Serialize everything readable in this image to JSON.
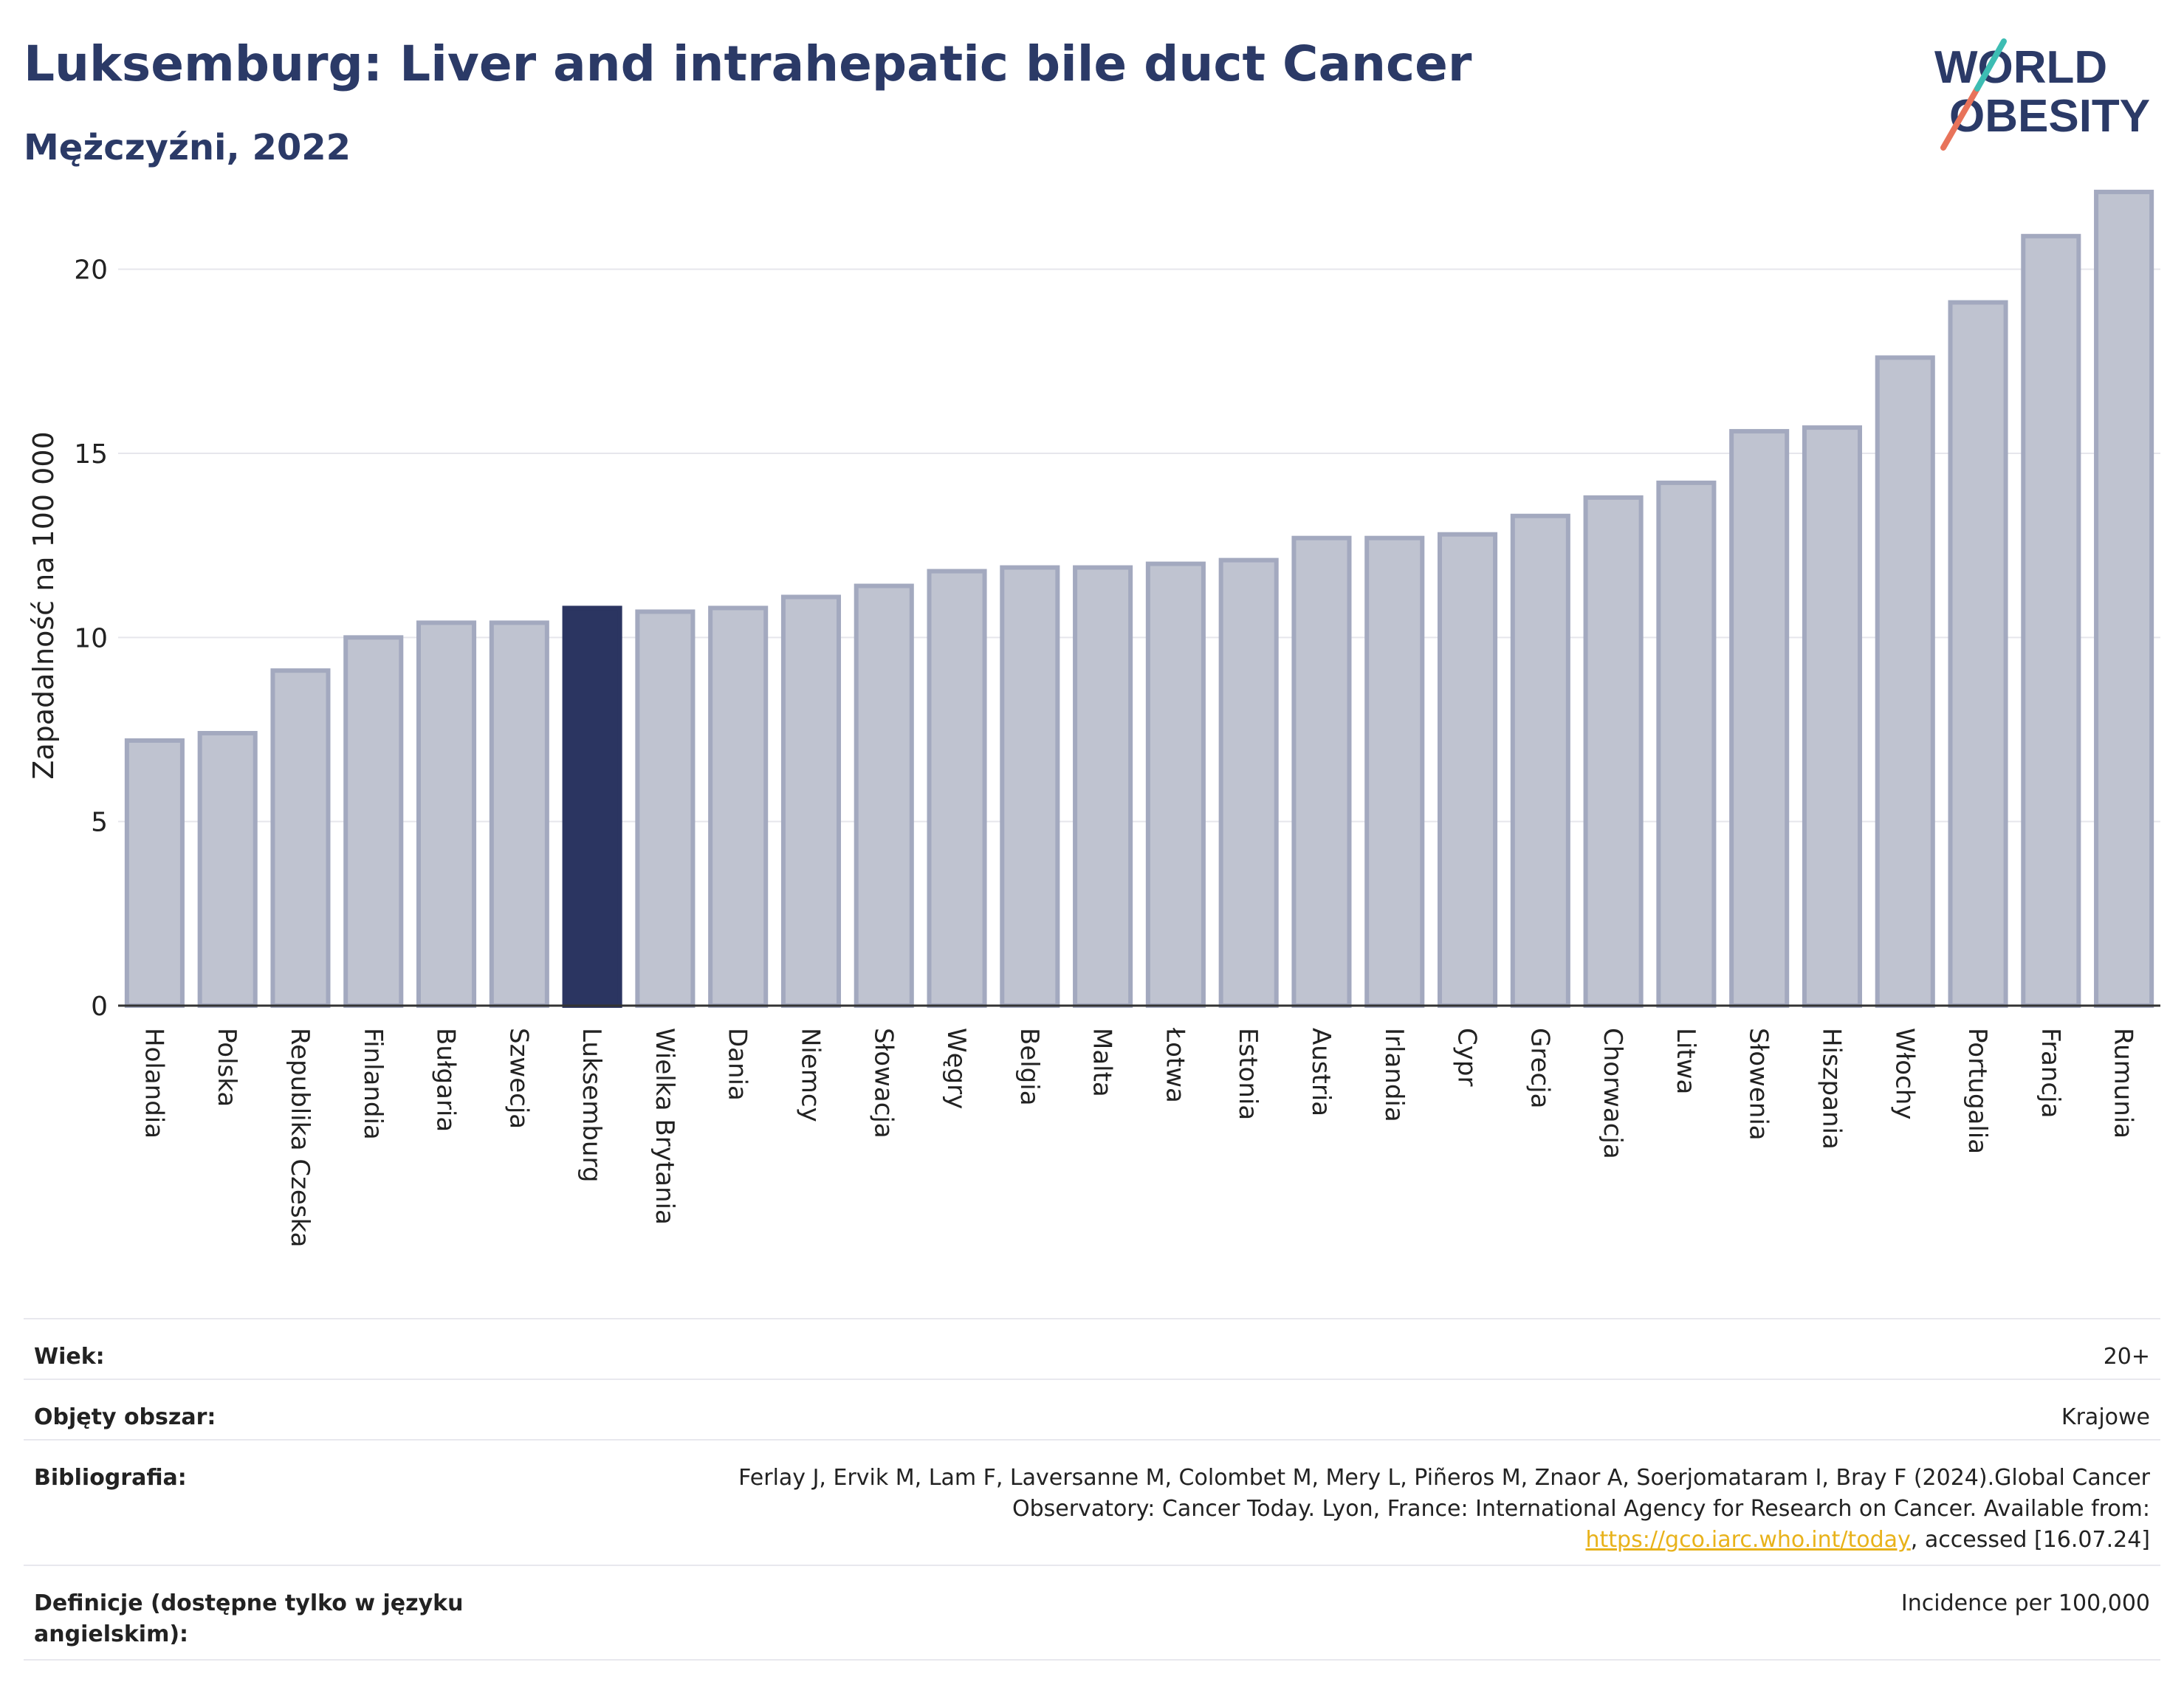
{
  "header": {
    "title": "Luksemburg: Liver and intrahepatic bile duct Cancer",
    "subtitle": "Mężczyźni, 2022"
  },
  "logo": {
    "line1": "WORLD",
    "line2": "OBESITY"
  },
  "chart_data": {
    "type": "bar",
    "ylabel": "Zapadalność na 100 000",
    "ylim": [
      0,
      22.5
    ],
    "yticks": [
      0,
      5,
      10,
      15,
      20
    ],
    "grid": true,
    "highlight": "Luksemburg",
    "colors": {
      "bar": "#bfc3d0",
      "bar_border": "#a3a9bf",
      "highlight": "#2b3561",
      "grid": "#e6e6ec",
      "axis": "#333333"
    },
    "categories": [
      "Holandia",
      "Polska",
      "Republika Czeska",
      "Finlandia",
      "Bułgaria",
      "Szwecja",
      "Luksemburg",
      "Wielka Brytania",
      "Dania",
      "Niemcy",
      "Słowacja",
      "Węgry",
      "Belgia",
      "Malta",
      "Łotwa",
      "Estonia",
      "Austria",
      "Irlandia",
      "Cypr",
      "Grecja",
      "Chorwacja",
      "Litwa",
      "Słowenia",
      "Hiszpania",
      "Włochy",
      "Portugalia",
      "Francja",
      "Rumunia"
    ],
    "values": [
      7.2,
      7.4,
      9.1,
      10.0,
      10.4,
      10.4,
      10.8,
      10.7,
      10.8,
      11.1,
      11.4,
      11.8,
      11.9,
      11.9,
      12.0,
      12.1,
      12.7,
      12.7,
      12.8,
      13.3,
      13.8,
      14.2,
      15.6,
      15.7,
      17.6,
      19.1,
      20.9,
      22.1
    ]
  },
  "meta": {
    "rows": [
      {
        "label": "Wiek:",
        "value": "20+"
      },
      {
        "label": "Objęty obszar:",
        "value": "Krajowe"
      },
      {
        "label": "Bibliografia:",
        "value_pre": "Ferlay J, Ervik M, Lam F, Laversanne M, Colombet M, Mery L, Piñeros M, Znaor A, Soerjomataram I, Bray F (2024).Global Cancer Observatory: Cancer Today. Lyon, France: International Agency for Research on Cancer. Available from: ",
        "link": "https://gco.iarc.who.int/today",
        "value_post": ", accessed [16.07.24]"
      },
      {
        "label": "Definicje (dostępne tylko w języku angielskim):",
        "value": "Incidence per 100,000"
      }
    ]
  }
}
